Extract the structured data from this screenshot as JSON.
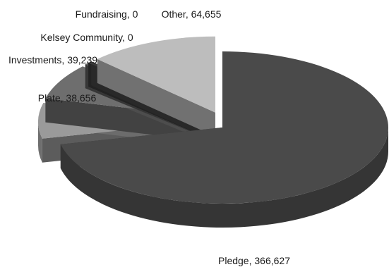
{
  "chart_data": {
    "type": "pie",
    "style": "3d-exploded",
    "title": "",
    "slices": [
      {
        "label": "Pledge",
        "value": 366627,
        "text": "Pledge, 366,627",
        "color": "#4a4a4a"
      },
      {
        "label": "Plate",
        "value": 38656,
        "text": "Plate, 38,656",
        "color": "#9a9a9a"
      },
      {
        "label": "Investments",
        "value": 39239,
        "text": "Investments, 39,239",
        "color": "#6e6e6e"
      },
      {
        "label": "Kelsey Community",
        "value": 0,
        "text": "Kelsey Community, 0",
        "color": "#5a5a5a"
      },
      {
        "label": "Fundraising",
        "value": 0,
        "text": "Fundraising, 0",
        "color": "#3a3a3a"
      },
      {
        "label": "Other",
        "value": 64655,
        "text": "Other, 64,655",
        "color": "#bdbdbd"
      }
    ]
  }
}
